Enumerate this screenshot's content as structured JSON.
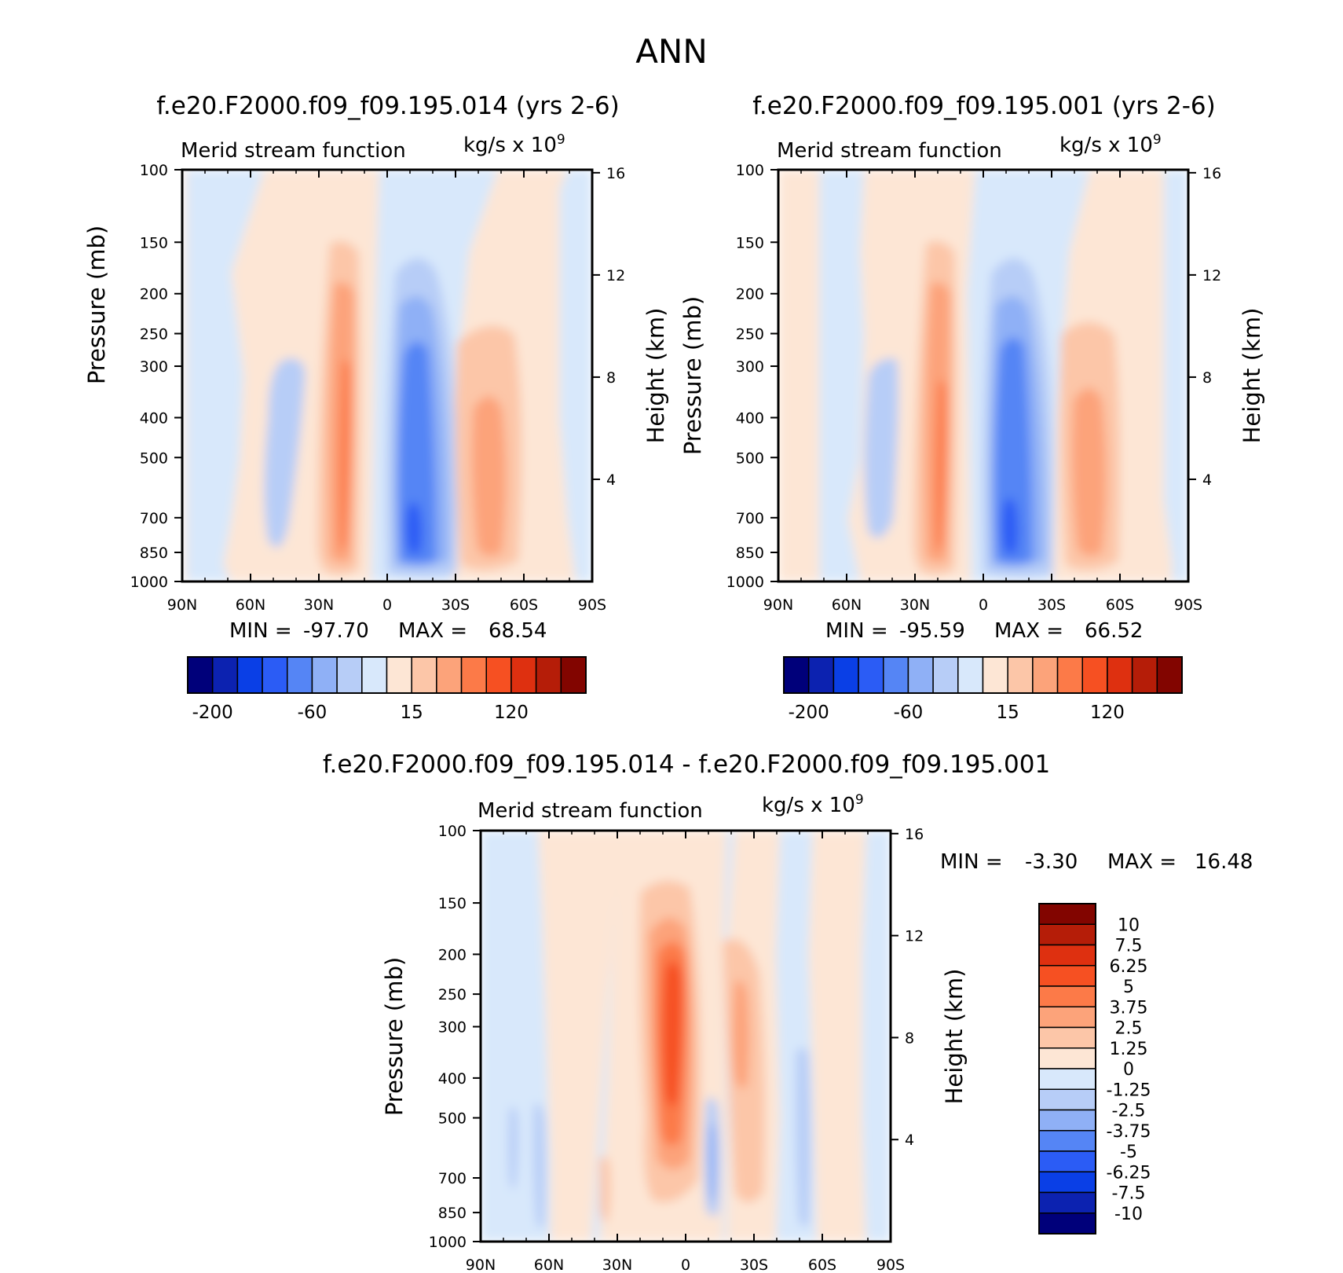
{
  "chart_data": {
    "type": "heatmap",
    "title": "ANN",
    "panels": [
      {
        "id": "top-left",
        "title": "f.e20.F2000.f09_f09.195.014 (yrs 2-6)",
        "left_label": "Merid stream function",
        "right_label": "kg/s x 10",
        "right_label_exp": "9",
        "ylabel": "Pressure (mb)",
        "ylabel2": "Height (km)",
        "x_ticks": [
          "90N",
          "60N",
          "30N",
          "0",
          "30S",
          "60S",
          "90S"
        ],
        "y_ticks": [
          "100",
          "150",
          "200",
          "250",
          "300",
          "400",
          "500",
          "700",
          "850",
          "1000"
        ],
        "y2_ticks": [
          "16",
          "12",
          "8",
          "4"
        ],
        "min_label": "MIN =",
        "min_value": "-97.70",
        "max_label": "MAX =",
        "max_value": "68.54",
        "colorbar_labels": [
          "-200",
          "-60",
          "15",
          "120"
        ]
      },
      {
        "id": "top-right",
        "title": "f.e20.F2000.f09_f09.195.001 (yrs 2-6)",
        "left_label": "Merid stream function",
        "right_label": "kg/s x 10",
        "right_label_exp": "9",
        "ylabel": "Pressure (mb)",
        "ylabel2": "Height (km)",
        "x_ticks": [
          "90N",
          "60N",
          "30N",
          "0",
          "30S",
          "60S",
          "90S"
        ],
        "y_ticks": [
          "100",
          "150",
          "200",
          "250",
          "300",
          "400",
          "500",
          "700",
          "850",
          "1000"
        ],
        "y2_ticks": [
          "16",
          "12",
          "8",
          "4"
        ],
        "min_label": "MIN =",
        "min_value": "-95.59",
        "max_label": "MAX =",
        "max_value": "66.52",
        "colorbar_labels": [
          "-200",
          "-60",
          "15",
          "120"
        ]
      },
      {
        "id": "bottom",
        "title": "f.e20.F2000.f09_f09.195.014 - f.e20.F2000.f09_f09.195.001",
        "left_label": "Merid stream function",
        "right_label": "kg/s x 10",
        "right_label_exp": "9",
        "ylabel": "Pressure (mb)",
        "ylabel2": "Height (km)",
        "x_ticks": [
          "90N",
          "60N",
          "30N",
          "0",
          "30S",
          "60S",
          "90S"
        ],
        "y_ticks": [
          "100",
          "150",
          "200",
          "250",
          "300",
          "400",
          "500",
          "700",
          "850",
          "1000"
        ],
        "y2_ticks": [
          "16",
          "12",
          "8",
          "4"
        ],
        "min_label": "MIN =",
        "min_value": "-3.30",
        "max_label": "MAX =",
        "max_value": "16.48",
        "colorbar_labels": [
          "10",
          "7.5",
          "6.25",
          "5",
          "3.75",
          "2.5",
          "1.25",
          "0",
          "-1.25",
          "-2.5",
          "-3.75",
          "-5",
          "-6.25",
          "-7.5",
          "-10"
        ]
      }
    ],
    "colorbar_colors": [
      "#00007a",
      "#0c22b0",
      "#0a3fe6",
      "#2b5cf5",
      "#5585f5",
      "#8fb0f6",
      "#b7cdf7",
      "#d8e8fb",
      "#fde6d5",
      "#fcc6a8",
      "#fca37a",
      "#fc7a48",
      "#f65022",
      "#de3010",
      "#b51d08",
      "#820500"
    ],
    "colors": {
      "neg1": "#d8e8fb",
      "neg2": "#b7cdf7",
      "neg3": "#8fb0f6",
      "neg4": "#5585f5",
      "neg5": "#2b5cf5",
      "neg6": "#0a3fe6",
      "pos1": "#fde6d5",
      "pos2": "#fcc6a8",
      "pos3": "#fca37a",
      "pos4": "#fc7a48",
      "pos5": "#f65022",
      "pos6": "#de3010"
    }
  }
}
